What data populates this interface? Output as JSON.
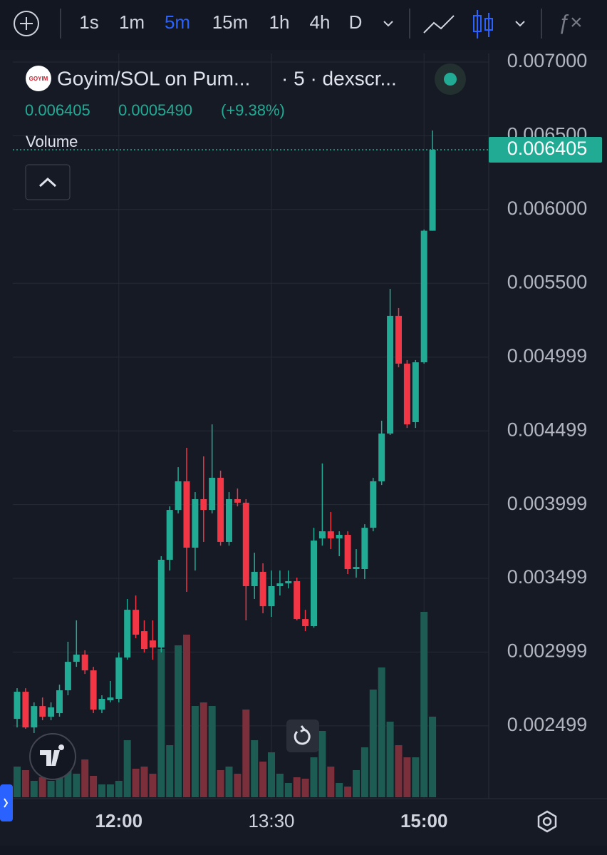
{
  "toolbar": {
    "intervals": [
      "1s",
      "1m",
      "5m",
      "15m",
      "1h",
      "4h",
      "D"
    ],
    "active": 2
  },
  "legend": {
    "logo": "GOYIM",
    "symbol": "Goyim/SOL on Pum...",
    "source": "· 5 · dexscr...",
    "close": "0.006405",
    "change": "0.0005490",
    "change_pct": "(+9.38%)",
    "volume": "Volume"
  },
  "chart_data": {
    "type": "candlestick",
    "categories": [
      null,
      null,
      null,
      null,
      null,
      null,
      null,
      null,
      null,
      null,
      null,
      null,
      "12:00",
      null,
      null,
      null,
      null,
      null,
      null,
      null,
      null,
      null,
      null,
      null,
      null,
      null,
      null,
      null,
      null,
      null,
      "13:30",
      null,
      null,
      null,
      null,
      null,
      null,
      null,
      null,
      null,
      null,
      null,
      null,
      null,
      null,
      null,
      null,
      null,
      "15:00",
      null
    ],
    "open": [
      0.002546,
      0.00273,
      0.002488,
      0.002633,
      0.002561,
      0.002585,
      0.00274,
      0.002933,
      0.002982,
      0.002875,
      0.002609,
      0.002672,
      0.002682,
      0.002962,
      0.003286,
      0.003141,
      0.003078,
      0.00303,
      0.003625,
      0.003963,
      0.004157,
      0.003707,
      0.004036,
      0.003963,
      0.004181,
      0.003746,
      0.004036,
      0.004012,
      0.003446,
      0.003543,
      0.00331,
      0.003446,
      0.003465,
      0.00348,
      0.003223,
      0.003175,
      0.00377,
      0.003818,
      0.00377,
      0.003794,
      0.003562,
      0.003562,
      0.003842,
      0.004157,
      0.004481,
      0.005279,
      0.004955,
      0.004558,
      0.004964,
      0.005856
    ],
    "high": [
      0.002754,
      0.002754,
      0.002658,
      0.002691,
      0.002658,
      0.002778,
      0.003069,
      0.003214,
      0.003011,
      0.002899,
      0.002706,
      0.002803,
      0.002996,
      0.003359,
      0.003383,
      0.003214,
      0.003214,
      0.003649,
      0.003987,
      0.004253,
      0.004384,
      0.004084,
      0.004326,
      0.004543,
      0.004229,
      0.004084,
      0.004108,
      0.004036,
      0.003673,
      0.003601,
      0.003552,
      0.003552,
      0.003552,
      0.003504,
      0.003286,
      0.003842,
      0.004278,
      0.003949,
      0.003818,
      0.003818,
      0.003697,
      0.003866,
      0.004181,
      0.004568,
      0.005462,
      0.005332,
      0.004979,
      0.004979,
      0.005864,
      0.006536
    ],
    "low": [
      0.002488,
      0.002479,
      0.00245,
      0.002537,
      0.002537,
      0.002561,
      0.002706,
      0.002899,
      0.002851,
      0.002585,
      0.002585,
      0.002658,
      0.002658,
      0.002948,
      0.003093,
      0.002996,
      0.002948,
      0.002996,
      0.003552,
      0.003939,
      0.003407,
      0.003552,
      0.003746,
      0.003939,
      0.003721,
      0.003721,
      0.003987,
      0.003214,
      0.003359,
      0.003262,
      0.003238,
      0.003383,
      0.003431,
      0.003214,
      0.003141,
      0.003165,
      0.003721,
      0.003697,
      0.003649,
      0.003528,
      0.003504,
      0.003494,
      0.003818,
      0.004132,
      0.004471,
      0.00493,
      0.004519,
      0.004519,
      0.004955,
      0.005856
    ],
    "close": [
      0.00273,
      0.002488,
      0.002633,
      0.002561,
      0.002624,
      0.00274,
      0.002933,
      0.002982,
      0.002875,
      0.002609,
      0.002682,
      0.002691,
      0.002962,
      0.003286,
      0.003117,
      0.00302,
      0.00303,
      0.003625,
      0.003963,
      0.004157,
      0.003707,
      0.004036,
      0.003963,
      0.004181,
      0.003746,
      0.004036,
      0.004012,
      0.003446,
      0.003543,
      0.00331,
      0.003446,
      0.003465,
      0.00348,
      0.003223,
      0.003175,
      0.003755,
      0.003818,
      0.00377,
      0.003794,
      0.003562,
      0.003576,
      0.003842,
      0.004157,
      0.004481,
      0.005279,
      0.004955,
      0.004543,
      0.004964,
      0.005856,
      0.006405
    ],
    "volume": [
      43,
      38,
      23,
      28,
      23,
      40,
      68,
      33,
      53,
      30,
      18,
      18,
      23,
      80,
      40,
      43,
      33,
      208,
      73,
      213,
      228,
      128,
      133,
      128,
      38,
      43,
      33,
      123,
      80,
      50,
      63,
      33,
      20,
      28,
      26,
      56,
      93,
      43,
      20,
      15,
      38,
      70,
      151,
      182,
      106,
      73,
      56,
      56,
      260,
      113
    ],
    "last_price_label": "0.006405",
    "ylim": [
      0.002005,
      0.007058
    ],
    "yticks": [
      {
        "value": 0.007,
        "label": "0.007000"
      },
      {
        "value": 0.0065,
        "label": "0.006500"
      },
      {
        "value": 0.006,
        "label": "0.006000"
      },
      {
        "value": 0.0055,
        "label": "0.005500"
      },
      {
        "value": 0.004999,
        "label": "0.004999"
      },
      {
        "value": 0.004499,
        "label": "0.004499"
      },
      {
        "value": 0.003999,
        "label": "0.003999"
      },
      {
        "value": 0.003499,
        "label": "0.003499"
      },
      {
        "value": 0.002999,
        "label": "0.002999"
      },
      {
        "value": 0.002499,
        "label": "0.002499"
      }
    ],
    "up_color": "#22ab94",
    "down_color": "#f23645",
    "volume_up_color": "#1d5c52",
    "volume_down_color": "#7a2f3b",
    "grid": true
  }
}
